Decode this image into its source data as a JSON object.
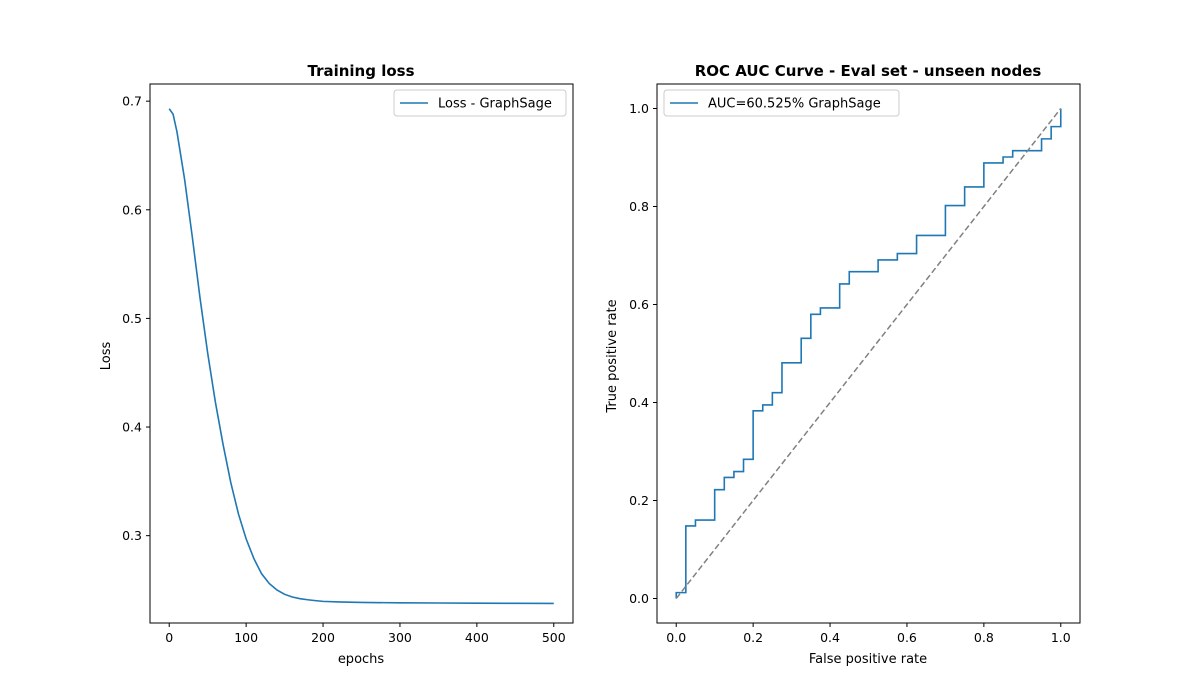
{
  "chart_data": [
    {
      "type": "line",
      "title": "Training loss",
      "xlabel": "epochs",
      "ylabel": "Loss",
      "xlim": [
        -25,
        525
      ],
      "ylim": [
        0.2196,
        0.7158
      ],
      "xticks": [
        0,
        100,
        200,
        300,
        400,
        500
      ],
      "yticks": [
        0.3,
        0.4,
        0.5,
        0.6,
        0.7
      ],
      "grid": false,
      "legend_position": "top-right",
      "series": [
        {
          "name": "Loss - GraphSage",
          "color": "#1f77b4",
          "x": [
            0,
            5,
            10,
            20,
            30,
            40,
            50,
            60,
            70,
            80,
            90,
            100,
            110,
            120,
            130,
            140,
            150,
            160,
            170,
            180,
            190,
            200,
            220,
            250,
            300,
            350,
            400,
            450,
            500
          ],
          "y": [
            0.693,
            0.688,
            0.672,
            0.628,
            0.575,
            0.519,
            0.468,
            0.423,
            0.384,
            0.349,
            0.32,
            0.297,
            0.279,
            0.265,
            0.256,
            0.25,
            0.246,
            0.2435,
            0.242,
            0.241,
            0.2402,
            0.2395,
            0.239,
            0.2385,
            0.2382,
            0.238,
            0.2378,
            0.2377,
            0.2376
          ]
        }
      ]
    },
    {
      "type": "line",
      "title": "ROC AUC Curve - Eval set - unseen nodes",
      "xlabel": "False positive rate",
      "ylabel": "True positive rate",
      "xlim": [
        -0.05,
        1.05
      ],
      "ylim": [
        -0.05,
        1.05
      ],
      "xticks": [
        0.0,
        0.2,
        0.4,
        0.6,
        0.8,
        1.0
      ],
      "yticks": [
        0.0,
        0.2,
        0.4,
        0.6,
        0.8,
        1.0
      ],
      "grid": false,
      "legend_position": "top-left",
      "series": [
        {
          "name": "AUC=60.525% GraphSage",
          "color": "#1f77b4",
          "style": "step",
          "x": [
            0.0,
            0.0,
            0.025,
            0.025,
            0.05,
            0.05,
            0.1,
            0.1,
            0.125,
            0.125,
            0.15,
            0.15,
            0.175,
            0.175,
            0.2,
            0.2,
            0.225,
            0.225,
            0.25,
            0.25,
            0.275,
            0.275,
            0.325,
            0.325,
            0.35,
            0.35,
            0.375,
            0.375,
            0.425,
            0.425,
            0.45,
            0.45,
            0.525,
            0.525,
            0.575,
            0.575,
            0.625,
            0.625,
            0.7,
            0.7,
            0.75,
            0.75,
            0.8,
            0.8,
            0.85,
            0.85,
            0.875,
            0.875,
            0.95,
            0.95,
            0.975,
            0.975,
            1.0,
            1.0
          ],
          "y": [
            0.0,
            0.012,
            0.012,
            0.148,
            0.148,
            0.16,
            0.16,
            0.222,
            0.222,
            0.247,
            0.247,
            0.259,
            0.259,
            0.284,
            0.284,
            0.383,
            0.383,
            0.395,
            0.395,
            0.42,
            0.42,
            0.481,
            0.481,
            0.531,
            0.531,
            0.58,
            0.58,
            0.593,
            0.593,
            0.642,
            0.642,
            0.667,
            0.667,
            0.691,
            0.691,
            0.704,
            0.704,
            0.741,
            0.741,
            0.802,
            0.802,
            0.84,
            0.84,
            0.889,
            0.889,
            0.901,
            0.901,
            0.914,
            0.914,
            0.938,
            0.938,
            0.963,
            0.963,
            1.0
          ]
        },
        {
          "name": "",
          "color": "#808080",
          "style": "dashed",
          "x": [
            0,
            1
          ],
          "y": [
            0,
            1
          ]
        }
      ]
    }
  ]
}
